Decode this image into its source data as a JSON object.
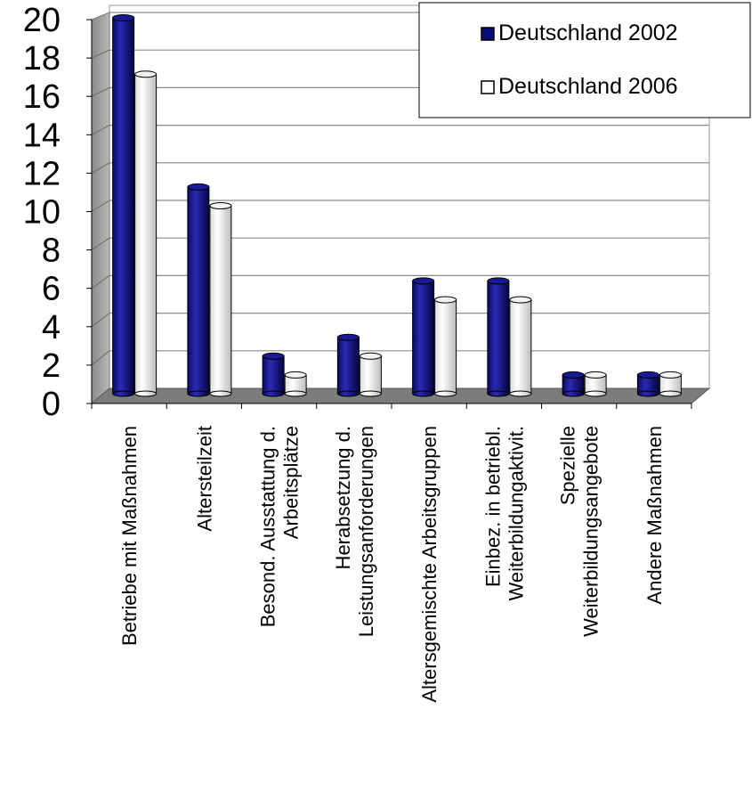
{
  "chart_data": {
    "type": "bar",
    "categories": [
      [
        "Betriebe mit Maßnahmen"
      ],
      [
        "Altersteilzeit"
      ],
      [
        "Besond. Ausstattung d.",
        "Arbeitsplätze"
      ],
      [
        "Herabsetzung d.",
        "Leistungsanforderungen"
      ],
      [
        "Altersgemischte Arbeitsgruppen"
      ],
      [
        "Einbez. in betriebl.",
        "Weiterbildungaktivit."
      ],
      [
        "Spezielle",
        "Weiterbildungsangebote"
      ],
      [
        "Andere Maßnahmen"
      ]
    ],
    "series": [
      {
        "name": "Deutschland 2002",
        "values": [
          20,
          11,
          2,
          3,
          6,
          6,
          1,
          1
        ],
        "color": "#0a0a78"
      },
      {
        "name": "Deutschland 2006",
        "values": [
          17,
          10,
          1,
          2,
          5,
          5,
          1,
          1
        ],
        "color": "#ffffff"
      }
    ],
    "ylim": [
      0,
      20
    ],
    "yticks": [
      0,
      2,
      4,
      6,
      8,
      10,
      12,
      14,
      16,
      18,
      20
    ],
    "grid": true,
    "legend_position": "top-right",
    "style": "3d-cylinder"
  }
}
